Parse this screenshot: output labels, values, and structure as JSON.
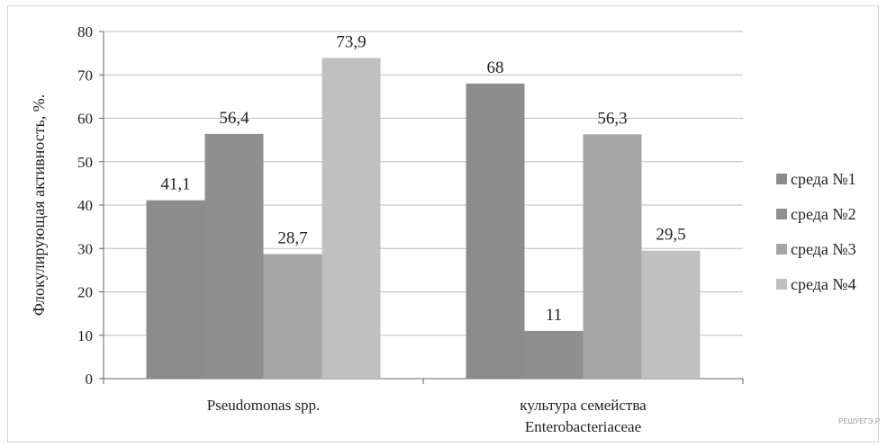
{
  "chart_data": {
    "type": "bar",
    "title": "",
    "xlabel": "",
    "ylabel": "Флокулирующая активность, %.",
    "categories": [
      [
        "Pseudomonas spp."
      ],
      [
        "культура семейства",
        "Enterobacteriaceae"
      ]
    ],
    "ylim": [
      0,
      80
    ],
    "yticks": [
      "0",
      "10",
      "20",
      "30",
      "40",
      "50",
      "60",
      "70",
      "80"
    ],
    "grid": true,
    "legend_position": "right",
    "series": [
      {
        "name": "среда №1",
        "color": "#8c8c8c",
        "values": [
          41.1,
          68
        ],
        "labels": [
          "41,1",
          "68"
        ]
      },
      {
        "name": "среда №2",
        "color": "#8f8f8f",
        "values": [
          56.4,
          11
        ],
        "labels": [
          "56,4",
          "11"
        ]
      },
      {
        "name": "среда №3",
        "color": "#a6a6a6",
        "values": [
          28.7,
          56.3
        ],
        "labels": [
          "28,7",
          "56,3"
        ]
      },
      {
        "name": "среда №4",
        "color": "#c0c0c0",
        "values": [
          73.9,
          29.5
        ],
        "labels": [
          "73,9",
          "29,5"
        ]
      }
    ]
  },
  "watermark": "РЕШУЕГЭ.Р"
}
